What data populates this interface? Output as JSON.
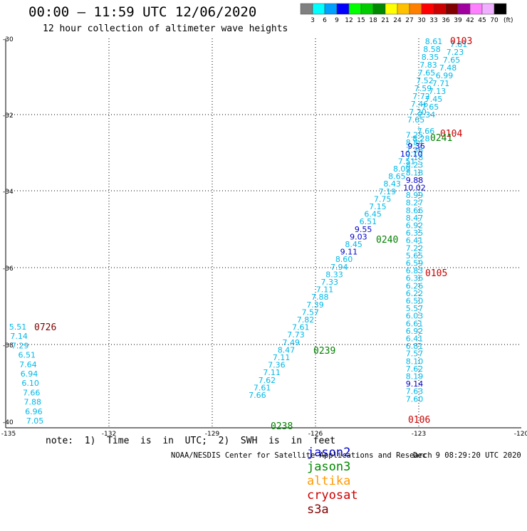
{
  "header": {
    "title": "00:00 — 11:59 UTC 12/06/2020",
    "subtitle": "12 hour collection of altimeter wave heights"
  },
  "colorbar": {
    "unit": "(ft)",
    "ticks": [
      "3",
      "6",
      "9",
      "12",
      "15",
      "18",
      "21",
      "24",
      "27",
      "30",
      "33",
      "36",
      "39",
      "42",
      "45",
      "70"
    ],
    "colors": [
      "#808080",
      "#00ffff",
      "#00a0ff",
      "#0000ff",
      "#00ff00",
      "#00cc00",
      "#008800",
      "#ffff00",
      "#ffc000",
      "#ff8000",
      "#ff0000",
      "#cc0000",
      "#800000",
      "#a000a0",
      "#ff80ff",
      "#f0b0ff",
      "#000000"
    ]
  },
  "map": {
    "lon_ticks": [
      "-135",
      "-132",
      "-129",
      "-126",
      "-123",
      "-120"
    ],
    "lat_ticks": [
      "-30",
      "-32",
      "-34",
      "-36",
      "-38",
      "-40"
    ]
  },
  "tracks": [
    {
      "id": "pass_0103",
      "label": "0103",
      "label_color": "#cc0000",
      "values": [
        "8.61",
        "7.81",
        "8.58",
        "7.23",
        "8.35",
        "7.65",
        "7.83",
        "7.48",
        "7.65",
        "6.99",
        "7.52",
        "7.71",
        "7.59",
        "7.13",
        "7.72",
        "7.45",
        "7.46",
        "7.65",
        "7.20",
        "7.34",
        "7.65"
      ]
    },
    {
      "id": "pass_0104",
      "label": "0104",
      "label_color": "#cc0000",
      "values": [
        "7.66",
        "7.25",
        "8.28",
        "8.84",
        "9.36",
        "7.38",
        "10.10",
        "7.18",
        "7.51",
        "8.23",
        "8.09",
        "8.18",
        "8.65",
        "9.88",
        "8.43",
        "10.02",
        "7.19",
        "8.99",
        "7.75",
        "8.27",
        "7.15",
        "8.66",
        "6.45",
        "8.47",
        "6.51",
        "6.92",
        "9.55",
        "6.35",
        "9.03",
        "6.41",
        "8.45",
        "7.22",
        "9.11",
        "5.65",
        "8.60",
        "6.59",
        "7.94",
        "6.83",
        "8.33",
        "6.36",
        "7.33",
        "6.26",
        "7.11",
        "6.22",
        "7.88",
        "6.50",
        "7.39",
        "5.57",
        "7.57",
        "6.03",
        "7.82",
        "6.61",
        "7.61",
        "6.92",
        "7.73",
        "6.41",
        "7.49",
        "6.81",
        "8.47",
        "7.57",
        "7.11",
        "8.10",
        "7.36",
        "7.62",
        "7.11",
        "8.19",
        "7.62",
        "9.14",
        "7.61",
        "7.63",
        "7.66",
        "7.60"
      ]
    },
    {
      "id": "pass_0241",
      "label": "0241",
      "label_color": "#008000"
    },
    {
      "id": "pass_0240",
      "label": "0240",
      "label_color": "#008000"
    },
    {
      "id": "pass_0239",
      "label": "0239",
      "label_color": "#008000"
    },
    {
      "id": "pass_0238",
      "label": "0238",
      "label_color": "#008000"
    },
    {
      "id": "pass_0105",
      "label": "0105",
      "label_color": "#cc0000"
    },
    {
      "id": "pass_0106",
      "label": "0106",
      "label_color": "#cc0000"
    },
    {
      "id": "pass_0726",
      "label": "0726",
      "label_color": "#800000",
      "values": [
        "5.51",
        "7.14",
        "7.29",
        "6.51",
        "7.64",
        "6.94",
        "6.10",
        "7.66",
        "7.88",
        "6.96",
        "7.05"
      ]
    }
  ],
  "footer": {
    "note": "note:  1)  Time  is  in  UTC;  2)  SWH  is  in  feet",
    "satellites": [
      {
        "name": "jason2",
        "color": "#0000cc"
      },
      {
        "name": "jason3",
        "color": "#008800"
      },
      {
        "name": "altika",
        "color": "#ff9900"
      },
      {
        "name": "cryosat",
        "color": "#cc0000"
      },
      {
        "name": "s3a",
        "color": "#800000"
      }
    ],
    "credit": "NOAA/NESDIS Center for Satellite Applications and Research",
    "timestamp": "Dec  9 08:29:20 UTC 2020"
  }
}
